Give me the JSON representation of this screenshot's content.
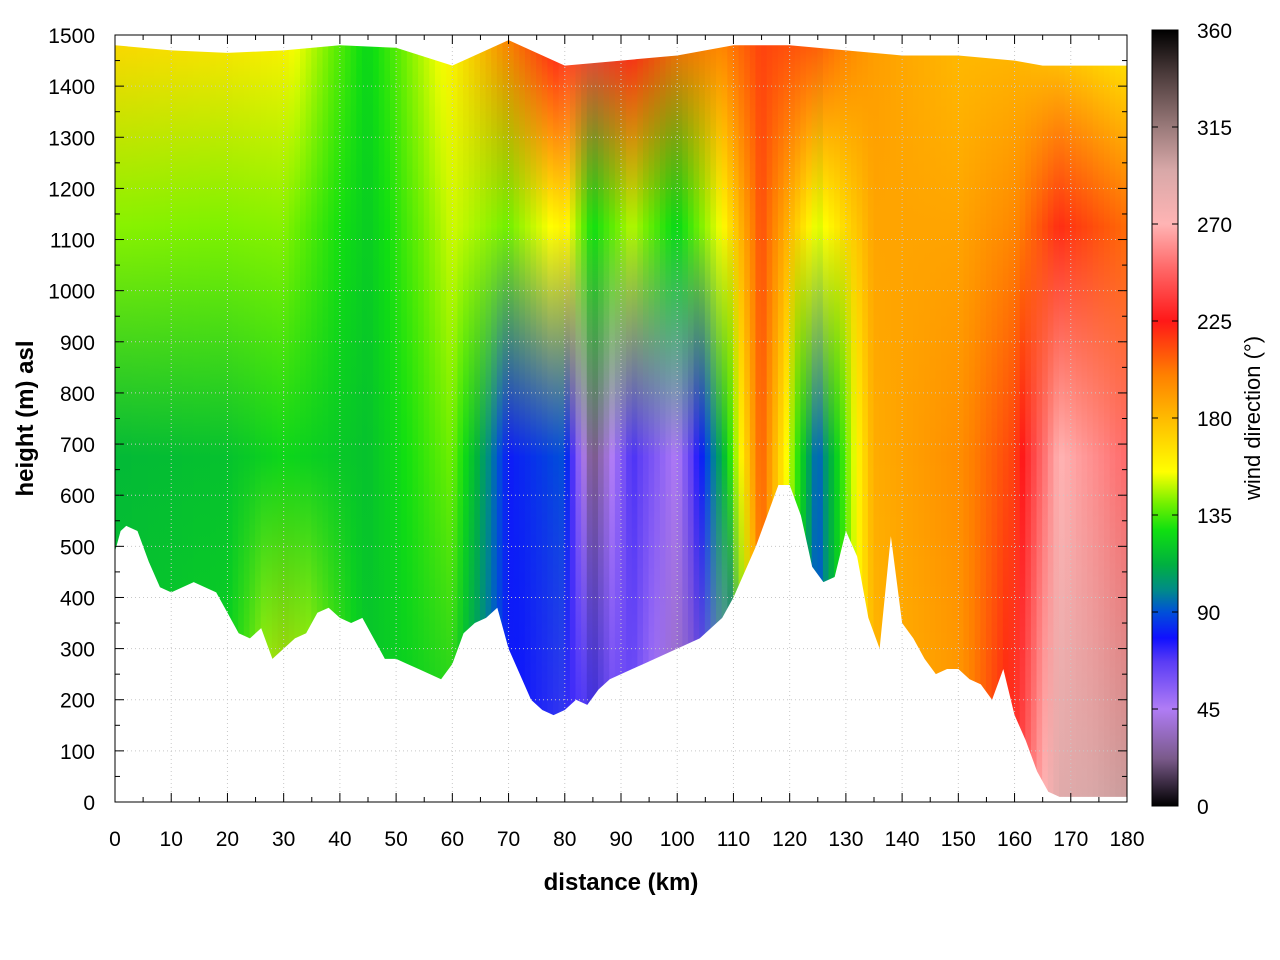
{
  "chart_data": {
    "type": "heatmap",
    "xlabel": "distance (km)",
    "ylabel": "height (m) asl",
    "colorbar_label": "wind direction (°)",
    "xlim": [
      0,
      180
    ],
    "ylim": [
      0,
      1500
    ],
    "clim": [
      0,
      360
    ],
    "x_ticks": [
      "0",
      "10",
      "20",
      "30",
      "40",
      "50",
      "60",
      "70",
      "80",
      "90",
      "100",
      "110",
      "120",
      "130",
      "140",
      "150",
      "160",
      "170",
      "180"
    ],
    "y_ticks": [
      "0",
      "100",
      "200",
      "300",
      "400",
      "500",
      "600",
      "700",
      "800",
      "900",
      "1000",
      "1100",
      "1200",
      "1300",
      "1400",
      "1500"
    ],
    "colorbar_ticks": [
      "0",
      "45",
      "90",
      "135",
      "180",
      "225",
      "270",
      "315",
      "360"
    ],
    "grid": true,
    "colormap": [
      {
        "v": 0,
        "c": "#000000"
      },
      {
        "v": 22,
        "c": "#7a5a8a"
      },
      {
        "v": 45,
        "c": "#b07cf5"
      },
      {
        "v": 67,
        "c": "#5a3cf5"
      },
      {
        "v": 78,
        "c": "#1010ff"
      },
      {
        "v": 90,
        "c": "#0050d8"
      },
      {
        "v": 100,
        "c": "#008a8a"
      },
      {
        "v": 112,
        "c": "#00b040"
      },
      {
        "v": 128,
        "c": "#10e010"
      },
      {
        "v": 140,
        "c": "#70f000"
      },
      {
        "v": 155,
        "c": "#ffff00"
      },
      {
        "v": 178,
        "c": "#ffc000"
      },
      {
        "v": 200,
        "c": "#ff8000"
      },
      {
        "v": 225,
        "c": "#ff1818"
      },
      {
        "v": 250,
        "c": "#ff6a6a"
      },
      {
        "v": 270,
        "c": "#ffb4b4"
      },
      {
        "v": 295,
        "c": "#d8a8a8"
      },
      {
        "v": 315,
        "c": "#9a7a7a"
      },
      {
        "v": 340,
        "c": "#4a3a3a"
      },
      {
        "v": 360,
        "c": "#000000"
      }
    ],
    "terrain": {
      "x": [
        0,
        1,
        2,
        4,
        6,
        8,
        10,
        12,
        14,
        16,
        18,
        20,
        22,
        24,
        26,
        28,
        30,
        32,
        34,
        36,
        38,
        40,
        42,
        44,
        46,
        48,
        50,
        52,
        54,
        56,
        58,
        60,
        62,
        64,
        66,
        68,
        70,
        72,
        74,
        76,
        78,
        80,
        82,
        84,
        86,
        88,
        90,
        92,
        94,
        96,
        98,
        100,
        102,
        104,
        106,
        108,
        110,
        112,
        114,
        116,
        118,
        120,
        122,
        124,
        126,
        128,
        130,
        132,
        134,
        136,
        138,
        140,
        142,
        144,
        146,
        148,
        150,
        152,
        154,
        156,
        158,
        160,
        162,
        164,
        166,
        168,
        170,
        172,
        174,
        176,
        178,
        180
      ],
      "height": [
        490,
        530,
        540,
        530,
        470,
        420,
        410,
        420,
        430,
        420,
        410,
        370,
        330,
        320,
        340,
        280,
        300,
        320,
        330,
        370,
        380,
        360,
        350,
        360,
        320,
        280,
        280,
        270,
        260,
        250,
        240,
        270,
        330,
        350,
        360,
        380,
        300,
        250,
        200,
        180,
        170,
        180,
        200,
        190,
        220,
        240,
        250,
        260,
        270,
        280,
        290,
        300,
        310,
        320,
        340,
        360,
        400,
        450,
        500,
        560,
        620,
        620,
        560,
        460,
        430,
        440,
        530,
        480,
        360,
        300,
        520,
        350,
        320,
        280,
        250,
        260,
        260,
        240,
        230,
        200,
        260,
        170,
        120,
        60,
        20,
        10,
        10,
        10,
        10,
        10,
        10,
        10
      ]
    },
    "top_edge": {
      "x": [
        0,
        10,
        20,
        30,
        40,
        50,
        60,
        70,
        80,
        90,
        100,
        110,
        120,
        130,
        140,
        150,
        160,
        165,
        170,
        180
      ],
      "height": [
        1480,
        1470,
        1465,
        1470,
        1480,
        1475,
        1440,
        1490,
        1440,
        1450,
        1460,
        1480,
        1480,
        1470,
        1460,
        1460,
        1450,
        1440,
        1440,
        1440
      ]
    },
    "wind_direction_profile": {
      "x": [
        0,
        20,
        30,
        45,
        60,
        70,
        80,
        85,
        92,
        100,
        108,
        115,
        125,
        135,
        150,
        160,
        168,
        180
      ],
      "bottom": [
        120,
        125,
        170,
        120,
        120,
        80,
        70,
        75,
        60,
        30,
        40,
        200,
        85,
        180,
        190,
        230,
        290,
        300
      ],
      "mid": [
        115,
        118,
        125,
        118,
        140,
        80,
        90,
        20,
        70,
        45,
        110,
        210,
        90,
        185,
        195,
        215,
        270,
        250
      ],
      "top": [
        170,
        165,
        160,
        125,
        160,
        200,
        230,
        235,
        225,
        205,
        200,
        215,
        210,
        190,
        180,
        180,
        170,
        160
      ]
    }
  }
}
